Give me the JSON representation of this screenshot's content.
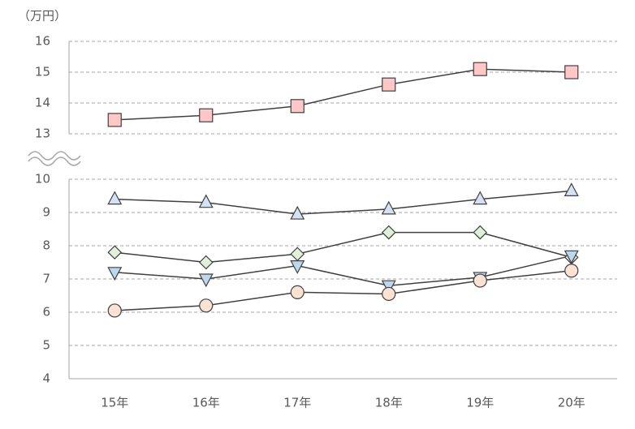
{
  "chart_data": [
    {
      "type": "line",
      "y_label": "（万円）",
      "ylim": [
        13,
        16
      ],
      "yticks": [
        13,
        14,
        15,
        16
      ],
      "grid": true,
      "series": [
        {
          "color": "#ffc7c7",
          "marker": "square",
          "values": [
            13.45,
            13.6,
            13.9,
            14.6,
            15.1,
            15.0
          ]
        }
      ]
    },
    {
      "type": "line",
      "categories": [
        "15年",
        "16年",
        "17年",
        "18年",
        "19年",
        "20年"
      ],
      "ylim": [
        4,
        10
      ],
      "yticks": [
        4,
        5,
        6,
        7,
        8,
        9,
        10
      ],
      "grid": true,
      "series": [
        {
          "color": "#d6e2f3",
          "marker": "triangle",
          "values": [
            9.4,
            9.3,
            8.95,
            9.1,
            9.4,
            9.65
          ]
        },
        {
          "color": "#e2efda",
          "marker": "diamond",
          "values": [
            7.8,
            7.5,
            7.75,
            8.4,
            8.4,
            7.65
          ]
        },
        {
          "color": "#bdd7ee",
          "marker": "triangle-down",
          "values": [
            7.2,
            7.0,
            7.4,
            6.8,
            7.05,
            7.7
          ]
        },
        {
          "color": "#fbe2d5",
          "marker": "circle",
          "values": [
            6.05,
            6.2,
            6.6,
            6.55,
            6.95,
            7.25
          ]
        }
      ]
    }
  ]
}
